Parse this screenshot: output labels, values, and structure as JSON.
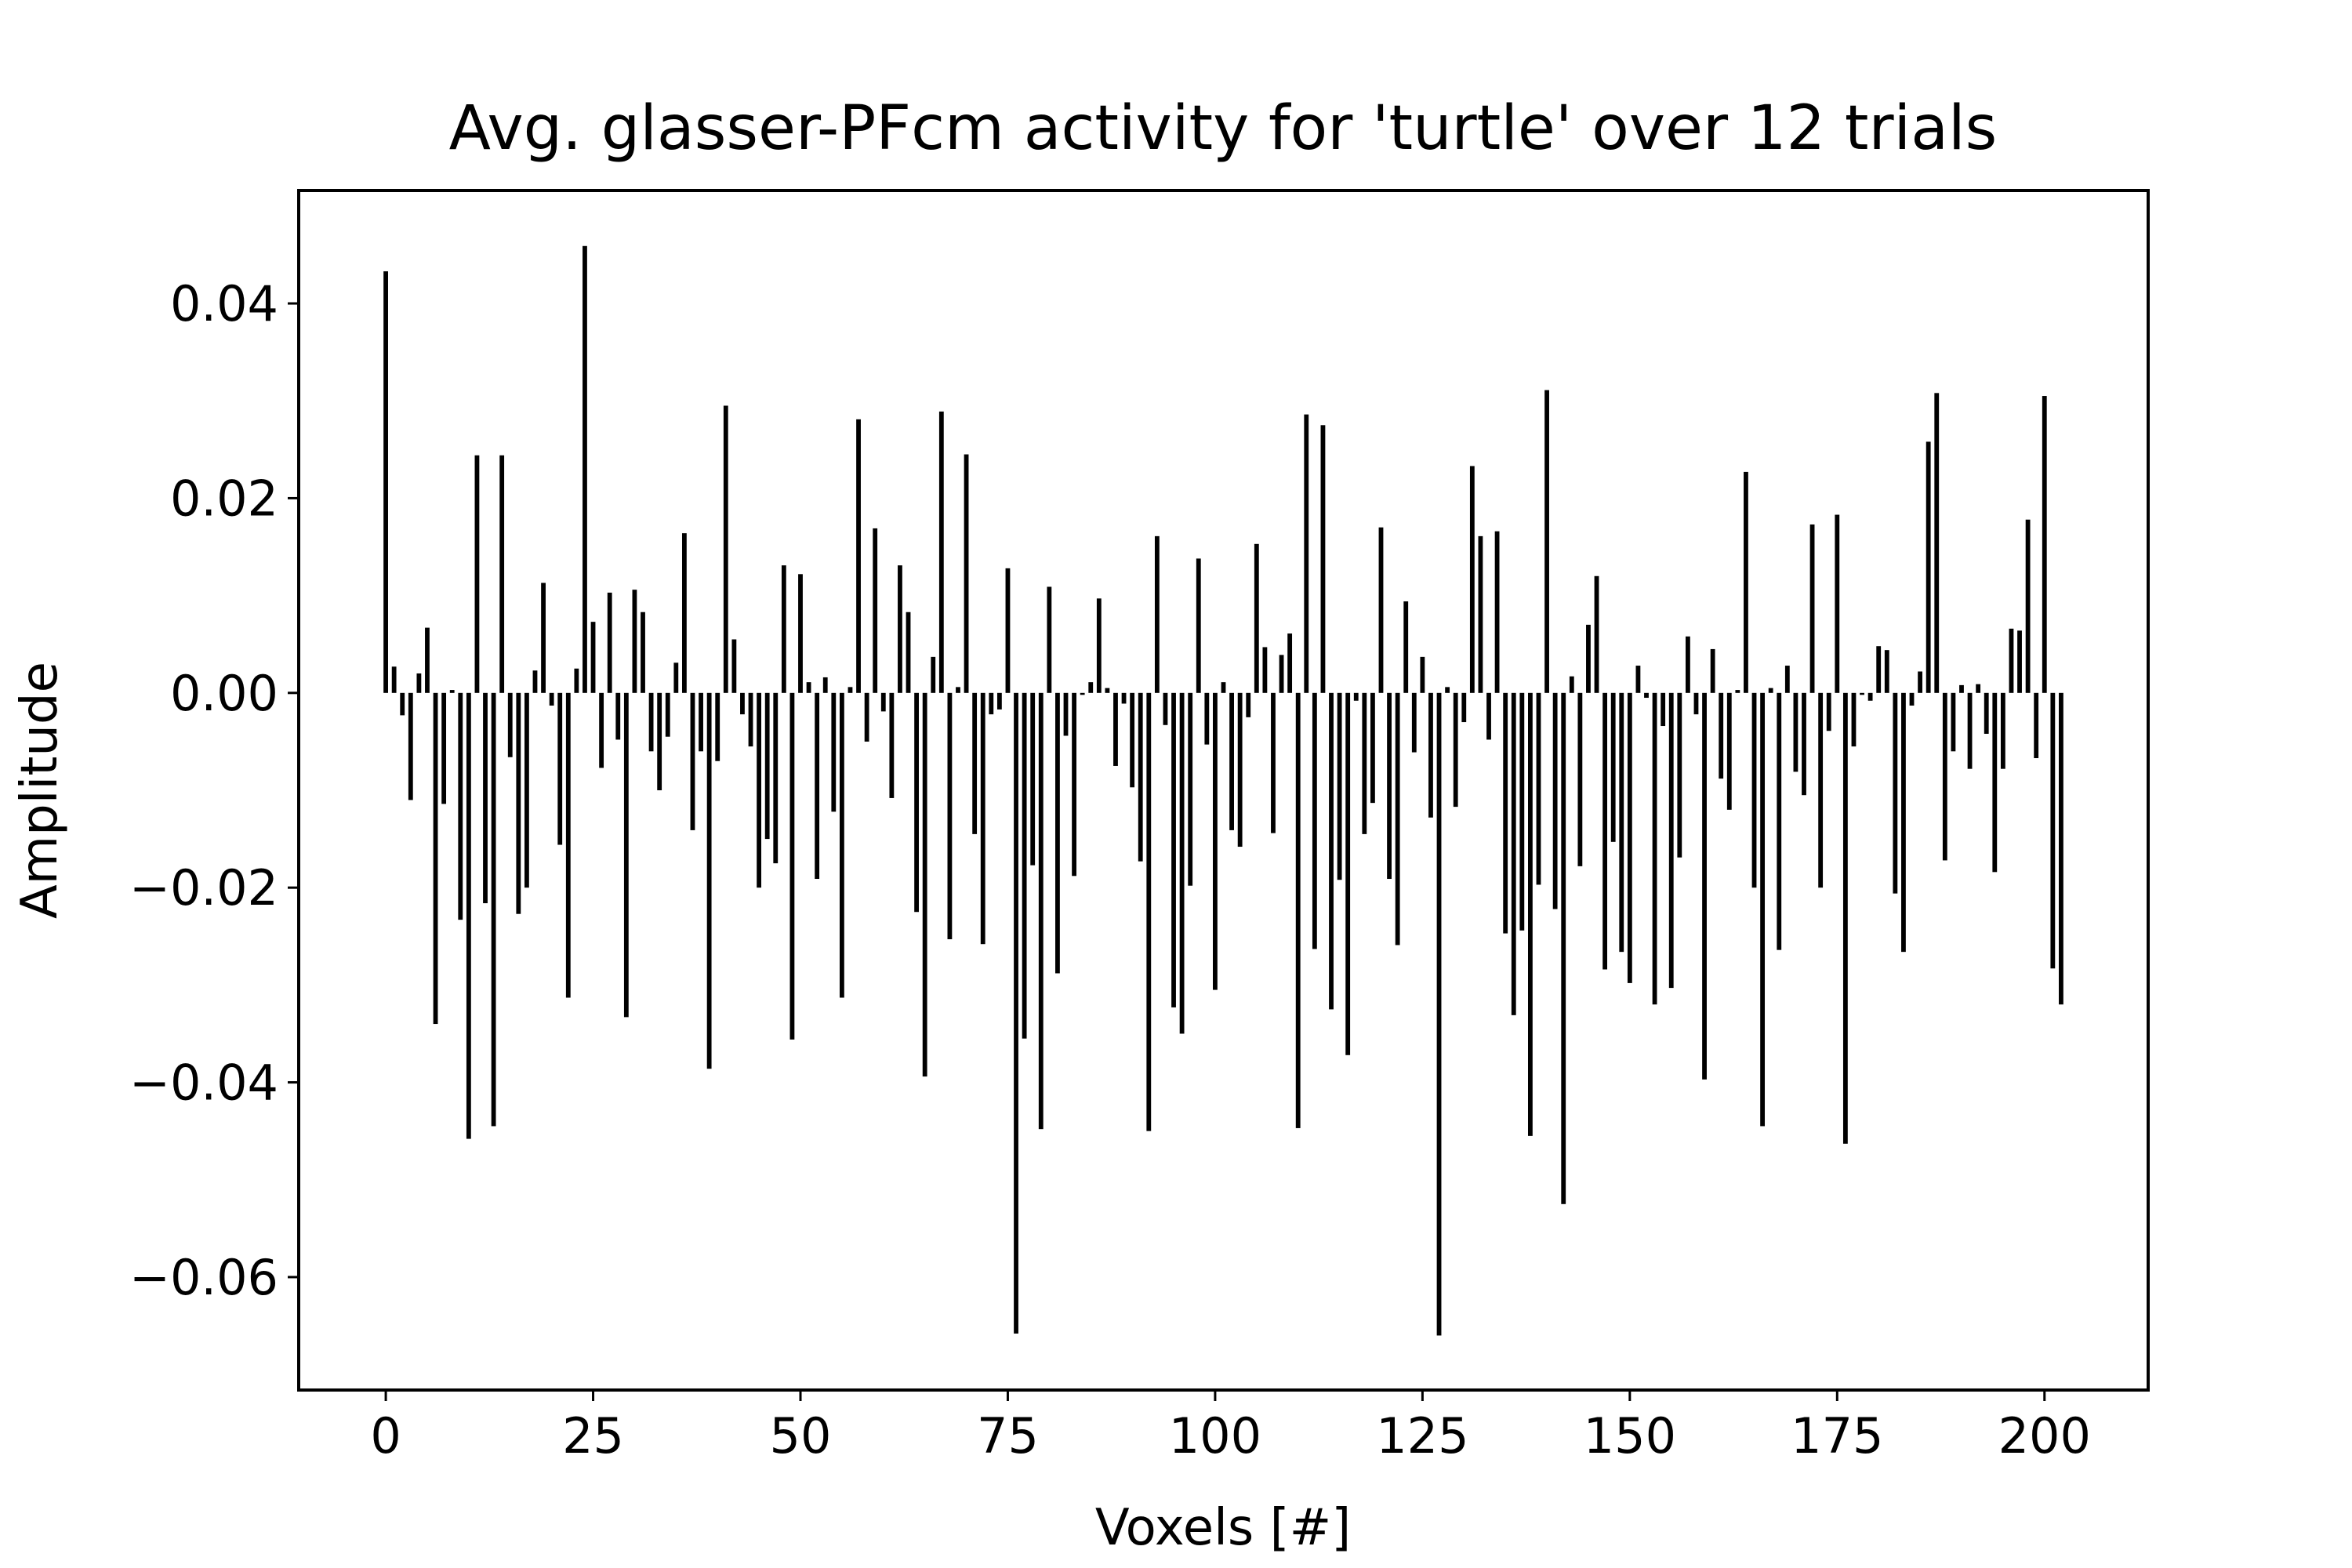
{
  "chart_data": {
    "type": "bar",
    "title": "Avg. glasser-PFcm activity for 'turtle' over 12 trials",
    "xlabel": "Voxels [#]",
    "ylabel": "Amplitude",
    "color": "#000000",
    "x": [
      0,
      1,
      2,
      3,
      4,
      5,
      6,
      7,
      8,
      9,
      10,
      11,
      12,
      13,
      14,
      15,
      16,
      17,
      18,
      19,
      20,
      21,
      22,
      23,
      24,
      25,
      26,
      27,
      28,
      29,
      30,
      31,
      32,
      33,
      34,
      35,
      36,
      37,
      38,
      39,
      40,
      41,
      42,
      43,
      44,
      45,
      46,
      47,
      48,
      49,
      50,
      51,
      52,
      53,
      54,
      55,
      56,
      57,
      58,
      59,
      60,
      61,
      62,
      63,
      64,
      65,
      66,
      67,
      68,
      69,
      70,
      71,
      72,
      73,
      74,
      75,
      76,
      77,
      78,
      79,
      80,
      81,
      82,
      83,
      84,
      85,
      86,
      87,
      88,
      89,
      90,
      91,
      92,
      93,
      94,
      95,
      96,
      97,
      98,
      99,
      100,
      101,
      102,
      103,
      104,
      105,
      106,
      107,
      108,
      109,
      110,
      111,
      112,
      113,
      114,
      115,
      116,
      117,
      118,
      119,
      120,
      121,
      122,
      123,
      124,
      125,
      126,
      127,
      128,
      129,
      130,
      131,
      132,
      133,
      134,
      135,
      136,
      137,
      138,
      139,
      140,
      141,
      142,
      143,
      144,
      145,
      146,
      147,
      148,
      149,
      150,
      151,
      152,
      153,
      154,
      155,
      156,
      157,
      158,
      159,
      160,
      161,
      162,
      163,
      164,
      165,
      166,
      167,
      168,
      169,
      170,
      171,
      172,
      173,
      174,
      175,
      176,
      177,
      178,
      179,
      180,
      181,
      182,
      183,
      184,
      185,
      186,
      187,
      188,
      189,
      190,
      191,
      192,
      193,
      194,
      195,
      196,
      197,
      198,
      199,
      200,
      201,
      202
    ],
    "values": [
      0.0433,
      0.0027,
      -0.0023,
      -0.011,
      0.002,
      0.0067,
      -0.034,
      -0.0114,
      0.0003,
      -0.0233,
      -0.0458,
      0.0244,
      -0.0216,
      -0.0445,
      0.0244,
      -0.0066,
      -0.0227,
      -0.02,
      0.0023,
      0.0113,
      -0.0013,
      -0.0156,
      -0.0313,
      0.0025,
      0.0459,
      0.0073,
      -0.0077,
      0.0103,
      -0.0048,
      -0.0333,
      0.0106,
      0.0083,
      -0.006,
      -0.01,
      -0.0045,
      0.0031,
      0.0164,
      -0.0141,
      -0.006,
      -0.0386,
      -0.007,
      0.0295,
      0.0055,
      -0.0022,
      -0.0055,
      -0.02,
      -0.015,
      -0.0175,
      0.0131,
      -0.0356,
      0.0122,
      0.0011,
      -0.0191,
      0.0016,
      -0.0122,
      -0.0313,
      0.0006,
      0.0281,
      -0.005,
      0.0169,
      -0.0019,
      -0.0108,
      0.0131,
      0.0083,
      -0.0225,
      -0.0394,
      0.0037,
      0.0289,
      -0.0253,
      0.0006,
      0.0245,
      -0.0145,
      -0.0258,
      -0.0022,
      -0.0017,
      0.0128,
      -0.0658,
      -0.0355,
      -0.0177,
      -0.0448,
      0.0109,
      -0.0288,
      -0.0044,
      -0.0188,
      -0.0002,
      0.0011,
      0.0097,
      0.0005,
      -0.0075,
      -0.0011,
      -0.0097,
      -0.0173,
      -0.045,
      0.0161,
      -0.0033,
      -0.0323,
      -0.035,
      -0.0198,
      0.0138,
      -0.0053,
      -0.0305,
      0.0011,
      -0.0141,
      -0.0158,
      -0.0025,
      0.0153,
      0.0047,
      -0.0144,
      0.0039,
      0.0061,
      -0.0447,
      0.0286,
      -0.0263,
      0.0275,
      -0.0325,
      -0.0192,
      -0.0372,
      -0.0008,
      -0.0145,
      -0.0113,
      0.017,
      -0.0191,
      -0.0259,
      0.0094,
      -0.0061,
      0.0037,
      -0.0128,
      -0.066,
      0.0006,
      -0.0117,
      -0.003,
      0.0233,
      0.0161,
      -0.0048,
      0.0166,
      -0.0247,
      -0.0331,
      -0.0244,
      -0.0455,
      -0.0197,
      0.0311,
      -0.0222,
      -0.0525,
      0.0017,
      -0.0178,
      0.007,
      0.012,
      -0.0284,
      -0.0153,
      -0.0266,
      -0.0298,
      0.0028,
      -0.0005,
      -0.032,
      -0.0034,
      -0.0303,
      -0.0169,
      0.0058,
      -0.0022,
      -0.0397,
      0.0045,
      -0.0088,
      -0.012,
      0.0003,
      0.0227,
      -0.02,
      -0.0445,
      0.0005,
      -0.0264,
      0.0028,
      -0.0081,
      -0.0105,
      0.0173,
      -0.02,
      -0.0039,
      0.0183,
      -0.0463,
      -0.0055,
      -0.0002,
      -0.0008,
      0.0048,
      0.0044,
      -0.0206,
      -0.0266,
      -0.0013,
      0.0022,
      0.0258,
      0.0308,
      -0.0172,
      -0.006,
      0.0008,
      -0.0078,
      0.0009,
      -0.0042,
      -0.0184,
      -0.0078,
      0.0066,
      0.0064,
      0.0178,
      -0.0067,
      0.0305,
      -0.0283,
      -0.032
    ],
    "xlim": [
      -10.5,
      212.5
    ],
    "xticks": [
      0,
      25,
      50,
      75,
      100,
      125,
      150,
      175,
      200
    ],
    "ylim": [
      -0.0716,
      0.0516
    ],
    "yticks": [
      {
        "value": -0.06,
        "label": "−0.06"
      },
      {
        "value": -0.04,
        "label": "−0.04"
      },
      {
        "value": -0.02,
        "label": "−0.02"
      },
      {
        "value": 0,
        "label": "0.00"
      },
      0.02,
      0.04
    ],
    "grid": false
  }
}
